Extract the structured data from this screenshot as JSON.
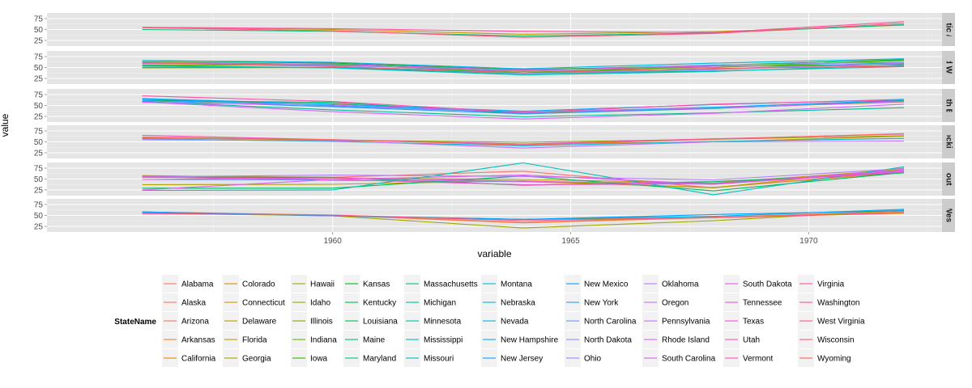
{
  "chart_data": {
    "type": "line",
    "xlabel": "variable",
    "ylabel": "value",
    "x": [
      1956,
      1960,
      1964,
      1968,
      1972
    ],
    "xlim": [
      1954,
      1972.8
    ],
    "x_ticks": [
      1960,
      1965,
      1970
    ],
    "y_ticks": [
      25,
      50,
      75
    ],
    "grid": true,
    "legend_placement": "bottom",
    "legend_title": "StateName",
    "facets": [
      {
        "label": "Atlantic / East",
        "ylim": [
          12,
          88
        ]
      },
      {
        "label": "Mid West",
        "ylim": [
          12,
          88
        ]
      },
      {
        "label": "North East",
        "ylim": [
          12,
          88
        ]
      },
      {
        "label": "Rockies",
        "ylim": [
          12,
          88
        ]
      },
      {
        "label": "South",
        "ylim": [
          12,
          88
        ]
      },
      {
        "label": "West",
        "ylim": [
          12,
          88
        ]
      }
    ],
    "series": [
      {
        "name": "Alabama",
        "facet": 4,
        "color": "#F8766D",
        "values": [
          57,
          54,
          68,
          30,
          68
        ]
      },
      {
        "name": "Alaska",
        "facet": 5,
        "color": "#F47A5B",
        "values": [
          58,
          51,
          34,
          46,
          60
        ]
      },
      {
        "name": "Arizona",
        "facet": 5,
        "color": "#EF7F48",
        "values": [
          56,
          50,
          33,
          45,
          58
        ]
      },
      {
        "name": "Arkansas",
        "facet": 4,
        "color": "#E98530",
        "values": [
          55,
          47,
          44,
          31,
          65
        ]
      },
      {
        "name": "California",
        "facet": 5,
        "color": "#E28A00",
        "values": [
          55,
          50,
          41,
          45,
          55
        ]
      },
      {
        "name": "Colorado",
        "facet": 3,
        "color": "#DA8F00",
        "values": [
          59,
          54,
          45,
          50,
          63
        ]
      },
      {
        "name": "Connecticut",
        "facet": 2,
        "color": "#D19400",
        "values": [
          61,
          54,
          32,
          44,
          58
        ]
      },
      {
        "name": "Delaware",
        "facet": 0,
        "color": "#C79800",
        "values": [
          55,
          50,
          39,
          45,
          60
        ]
      },
      {
        "name": "Florida",
        "facet": 4,
        "color": "#BB9D00",
        "values": [
          58,
          52,
          49,
          41,
          72
        ]
      },
      {
        "name": "Georgia",
        "facet": 4,
        "color": "#AEA100",
        "values": [
          37,
          38,
          46,
          30,
          75
        ]
      },
      {
        "name": "Hawaii",
        "facet": 5,
        "color": "#A0A500",
        "values": [
          55,
          49,
          21,
          38,
          62
        ]
      },
      {
        "name": "Idaho",
        "facet": 3,
        "color": "#90A800",
        "values": [
          61,
          54,
          49,
          56,
          64
        ]
      },
      {
        "name": "Illinois",
        "facet": 1,
        "color": "#7DAE00",
        "values": [
          49,
          50,
          41,
          47,
          59
        ]
      },
      {
        "name": "Indiana",
        "facet": 1,
        "color": "#64B200",
        "values": [
          56,
          55,
          44,
          50,
          66
        ]
      },
      {
        "name": "Iowa",
        "facet": 1,
        "color": "#3BB500",
        "values": [
          63,
          57,
          38,
          53,
          58
        ]
      },
      {
        "name": "Kansas",
        "facet": 1,
        "color": "#00B81F",
        "values": [
          66,
          60,
          45,
          55,
          68
        ]
      },
      {
        "name": "Kentucky",
        "facet": 4,
        "color": "#00BA42",
        "values": [
          54,
          54,
          36,
          44,
          64
        ]
      },
      {
        "name": "Louisiana",
        "facet": 4,
        "color": "#00BC59",
        "values": [
          29,
          29,
          57,
          23,
          65
        ]
      },
      {
        "name": "Maine",
        "facet": 2,
        "color": "#00BE6C",
        "values": [
          62,
          57,
          31,
          43,
          61
        ]
      },
      {
        "name": "Maryland",
        "facet": 0,
        "color": "#00BF7D",
        "values": [
          50,
          46,
          35,
          42,
          61
        ]
      },
      {
        "name": "Massachusetts",
        "facet": 2,
        "color": "#00C08E",
        "values": [
          59,
          40,
          24,
          33,
          45
        ]
      },
      {
        "name": "Michigan",
        "facet": 1,
        "color": "#00C09D",
        "values": [
          55,
          49,
          33,
          41,
          56
        ]
      },
      {
        "name": "Minnesota",
        "facet": 1,
        "color": "#00C0AC",
        "values": [
          53,
          49,
          36,
          42,
          52
        ]
      },
      {
        "name": "Mississippi",
        "facet": 4,
        "color": "#00BFBA",
        "values": [
          24,
          25,
          87,
          14,
          78
        ]
      },
      {
        "name": "Missouri",
        "facet": 1,
        "color": "#00BDC6",
        "values": [
          50,
          50,
          36,
          45,
          62
        ]
      },
      {
        "name": "Montana",
        "facet": 3,
        "color": "#00BAD2",
        "values": [
          57,
          51,
          41,
          51,
          58
        ]
      },
      {
        "name": "Nebraska",
        "facet": 1,
        "color": "#00B7DE",
        "values": [
          66,
          62,
          47,
          60,
          70
        ]
      },
      {
        "name": "Nevada",
        "facet": 5,
        "color": "#00B2E8",
        "values": [
          58,
          49,
          41,
          48,
          64
        ]
      },
      {
        "name": "New Hampshire",
        "facet": 2,
        "color": "#00ADF2",
        "values": [
          66,
          53,
          37,
          52,
          64
        ]
      },
      {
        "name": "New Jersey",
        "facet": 2,
        "color": "#00A7FA",
        "values": [
          65,
          49,
          34,
          46,
          62
        ]
      },
      {
        "name": "New Mexico",
        "facet": 5,
        "color": "#00A0FF",
        "values": [
          58,
          49,
          41,
          52,
          61
        ]
      },
      {
        "name": "New York",
        "facet": 2,
        "color": "#2F99FF",
        "values": [
          61,
          47,
          31,
          44,
          59
        ]
      },
      {
        "name": "North Carolina",
        "facet": 4,
        "color": "#6E91FF",
        "values": [
          49,
          48,
          44,
          40,
          69
        ]
      },
      {
        "name": "North Dakota",
        "facet": 1,
        "color": "#8C8AFF",
        "values": [
          62,
          55,
          42,
          56,
          62
        ]
      },
      {
        "name": "Ohio",
        "facet": 1,
        "color": "#A282FF",
        "values": [
          61,
          53,
          37,
          45,
          60
        ]
      },
      {
        "name": "Oklahoma",
        "facet": 4,
        "color": "#B47AFF",
        "values": [
          55,
          59,
          56,
          48,
          74
        ]
      },
      {
        "name": "Oregon",
        "facet": 3,
        "color": "#C272FF",
        "values": [
          55,
          53,
          36,
          50,
          52
        ]
      },
      {
        "name": "Pennsylvania",
        "facet": 2,
        "color": "#CE6BFF",
        "values": [
          57,
          51,
          35,
          44,
          59
        ]
      },
      {
        "name": "Rhode Island",
        "facet": 2,
        "color": "#D864FF",
        "values": [
          58,
          36,
          19,
          32,
          53
        ]
      },
      {
        "name": "South Carolina",
        "facet": 4,
        "color": "#E15DF3",
        "values": [
          25,
          49,
          59,
          38,
          71
        ]
      },
      {
        "name": "South Dakota",
        "facet": 1,
        "color": "#E858E7",
        "values": [
          59,
          58,
          44,
          53,
          54
        ]
      },
      {
        "name": "Tennessee",
        "facet": 4,
        "color": "#EE55DA",
        "values": [
          49,
          53,
          45,
          38,
          68
        ]
      },
      {
        "name": "Texas",
        "facet": 4,
        "color": "#F352CC",
        "values": [
          55,
          49,
          37,
          39,
          66
        ]
      },
      {
        "name": "Utah",
        "facet": 3,
        "color": "#F751BD",
        "values": [
          65,
          55,
          45,
          57,
          68
        ]
      },
      {
        "name": "Vermont",
        "facet": 2,
        "color": "#FA51AE",
        "values": [
          72,
          59,
          34,
          53,
          63
        ]
      },
      {
        "name": "Virginia",
        "facet": 0,
        "color": "#FC529E",
        "values": [
          55,
          52,
          46,
          43,
          68
        ]
      },
      {
        "name": "Washington",
        "facet": 5,
        "color": "#FD568D",
        "values": [
          54,
          51,
          38,
          45,
          56
        ]
      },
      {
        "name": "West Virginia",
        "facet": 0,
        "color": "#FD5A7C",
        "values": [
          54,
          47,
          32,
          41,
          64
        ]
      },
      {
        "name": "Wisconsin",
        "facet": 1,
        "color": "#FC5E6A",
        "values": [
          61,
          52,
          38,
          48,
          53
        ]
      },
      {
        "name": "Wyoming",
        "facet": 3,
        "color": "#FA6658",
        "values": [
          60,
          55,
          43,
          56,
          69
        ]
      }
    ]
  }
}
